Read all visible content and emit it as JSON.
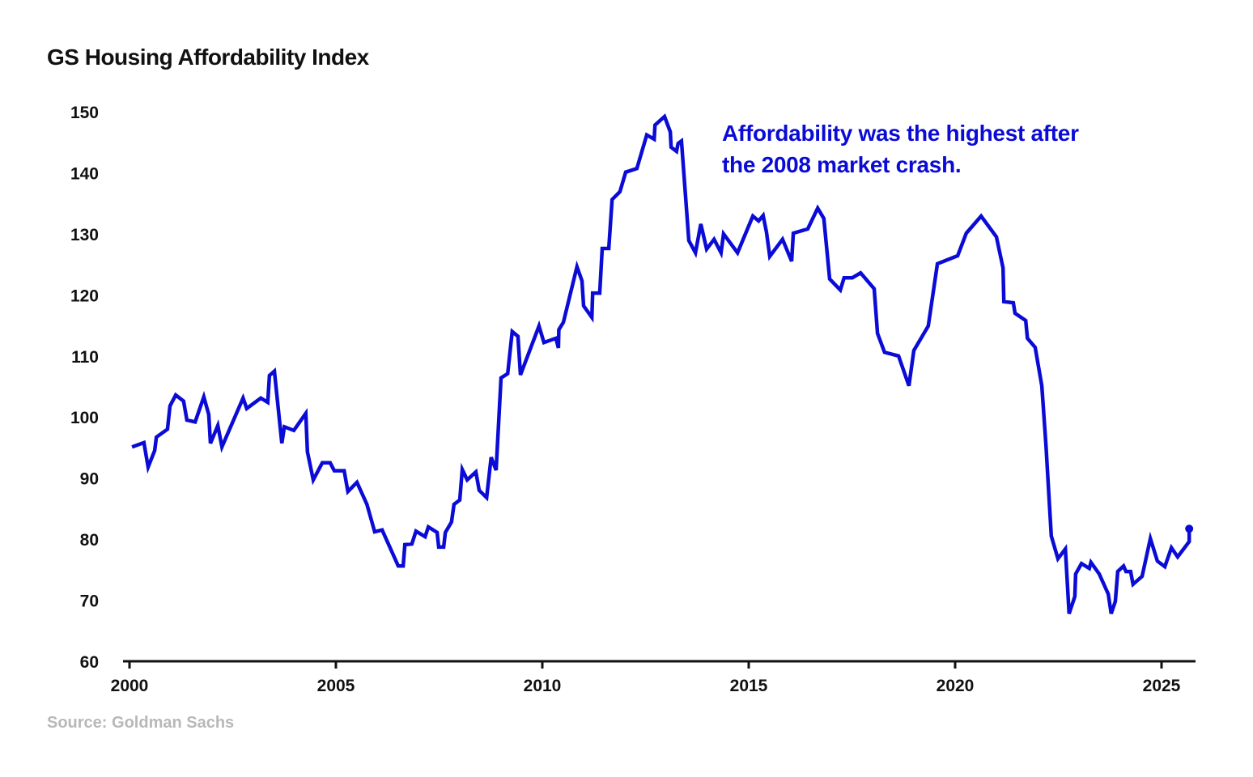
{
  "chart_data": {
    "type": "line",
    "title": "GS Housing Affordability Index",
    "xlabel": "",
    "ylabel": "",
    "xlim": [
      2000,
      2025.8
    ],
    "ylim": [
      60,
      150
    ],
    "x_ticks": [
      "2000",
      "2005",
      "2010",
      "2015",
      "2020",
      "2025"
    ],
    "y_ticks": [
      "60",
      "70",
      "80",
      "90",
      "100",
      "110",
      "120",
      "130",
      "140",
      "150"
    ],
    "grid": false,
    "line_color": "#0b0bd6",
    "annotation": {
      "lines": [
        "Affordability was the highest after",
        "the 2008 market crash."
      ],
      "color": "#0b0bd6"
    },
    "source": "Source:  Goldman Sachs",
    "series": [
      {
        "x": [
          2000.06,
          2000.35,
          2000.45,
          2000.61,
          2000.65,
          2000.92,
          2000.98,
          2001.12,
          2001.31,
          2001.39,
          2001.59,
          2001.8,
          2001.92,
          2001.96,
          2002.14,
          2002.24,
          2002.75,
          2002.84,
          2003.18,
          2003.35,
          2003.39,
          2003.51,
          2003.69,
          2003.75,
          2003.98,
          2004.27,
          2004.31,
          2004.45,
          2004.67,
          2004.86,
          2004.96,
          2005.2,
          2005.29,
          2005.51,
          2005.75,
          2005.94,
          2006.12,
          2006.51,
          2006.63,
          2006.67,
          2006.84,
          2006.94,
          2007.16,
          2007.24,
          2007.45,
          2007.49,
          2007.61,
          2007.65,
          2007.8,
          2007.86,
          2008.0,
          2008.06,
          2008.18,
          2008.39,
          2008.47,
          2008.65,
          2008.76,
          2008.88,
          2009.0,
          2009.16,
          2009.27,
          2009.41,
          2009.47,
          2009.92,
          2010.04,
          2010.33,
          2010.39,
          2010.4,
          2010.51,
          2010.84,
          2010.96,
          2011.0,
          2011.2,
          2011.22,
          2011.39,
          2011.45,
          2011.61,
          2011.69,
          2011.88,
          2012.02,
          2012.29,
          2012.53,
          2012.71,
          2012.73,
          2012.96,
          2013.1,
          2013.12,
          2013.25,
          2013.29,
          2013.37,
          2013.55,
          2013.71,
          2013.84,
          2013.98,
          2014.16,
          2014.33,
          2014.39,
          2014.73,
          2015.1,
          2015.24,
          2015.35,
          2015.43,
          2015.51,
          2015.82,
          2016.04,
          2016.08,
          2016.43,
          2016.67,
          2016.82,
          2016.96,
          2017.22,
          2017.31,
          2017.51,
          2017.71,
          2018.04,
          2018.12,
          2018.29,
          2018.63,
          2018.88,
          2019.0,
          2019.35,
          2019.57,
          2020.06,
          2020.27,
          2020.63,
          2021.0,
          2021.16,
          2021.18,
          2021.41,
          2021.45,
          2021.71,
          2021.75,
          2021.94,
          2022.1,
          2022.2,
          2022.33,
          2022.49,
          2022.67,
          2022.76,
          2022.9,
          2022.92,
          2023.06,
          2023.25,
          2023.29,
          2023.49,
          2023.71,
          2023.78,
          2023.88,
          2023.94,
          2024.08,
          2024.14,
          2024.25,
          2024.31,
          2024.53,
          2024.73,
          2024.9,
          2025.08,
          2025.24,
          2025.39,
          2025.67,
          2025.67
        ],
        "y": [
          95.1,
          95.8,
          91.8,
          94.5,
          96.7,
          98.0,
          101.8,
          103.6,
          102.6,
          99.5,
          99.2,
          103.3,
          100.4,
          95.7,
          98.6,
          95.1,
          103.1,
          101.4,
          103.1,
          102.4,
          106.8,
          107.5,
          95.7,
          98.4,
          97.8,
          100.6,
          94.3,
          89.7,
          92.5,
          92.5,
          91.2,
          91.2,
          87.8,
          89.3,
          85.7,
          81.2,
          81.5,
          75.6,
          75.6,
          79.1,
          79.2,
          81.3,
          80.4,
          82.0,
          81.1,
          78.7,
          78.7,
          81.1,
          82.8,
          85.7,
          86.4,
          91.4,
          89.7,
          91.0,
          88.0,
          86.8,
          93.4,
          91.3,
          106.4,
          107.1,
          114.0,
          113.2,
          106.9,
          114.9,
          112.2,
          112.9,
          111.3,
          114.3,
          115.5,
          124.6,
          122.3,
          118.2,
          116.3,
          120.3,
          120.3,
          127.6,
          127.6,
          135.6,
          136.9,
          140.1,
          140.7,
          146.2,
          145.5,
          147.8,
          149.2,
          146.7,
          144.2,
          143.5,
          144.8,
          145.2,
          128.9,
          126.9,
          131.6,
          127.5,
          129.1,
          126.9,
          130.0,
          126.9,
          132.9,
          132.1,
          133.0,
          130.3,
          126.3,
          129.1,
          125.5,
          130.1,
          130.8,
          134.2,
          132.5,
          122.6,
          120.8,
          122.8,
          122.8,
          123.6,
          121.0,
          113.7,
          110.6,
          110.0,
          105.1,
          110.9,
          114.9,
          125.1,
          126.4,
          130.1,
          132.9,
          129.5,
          124.4,
          118.9,
          118.7,
          117.0,
          115.8,
          112.9,
          111.4,
          105.1,
          95.4,
          80.5,
          76.8,
          78.4,
          67.8,
          70.6,
          74.3,
          76.0,
          75.2,
          76.2,
          74.3,
          71.0,
          67.8,
          69.8,
          74.7,
          75.6,
          74.7,
          74.7,
          72.6,
          73.9,
          80.1,
          76.4,
          75.5,
          78.6,
          77.1,
          79.6,
          81.7
        ]
      }
    ]
  }
}
